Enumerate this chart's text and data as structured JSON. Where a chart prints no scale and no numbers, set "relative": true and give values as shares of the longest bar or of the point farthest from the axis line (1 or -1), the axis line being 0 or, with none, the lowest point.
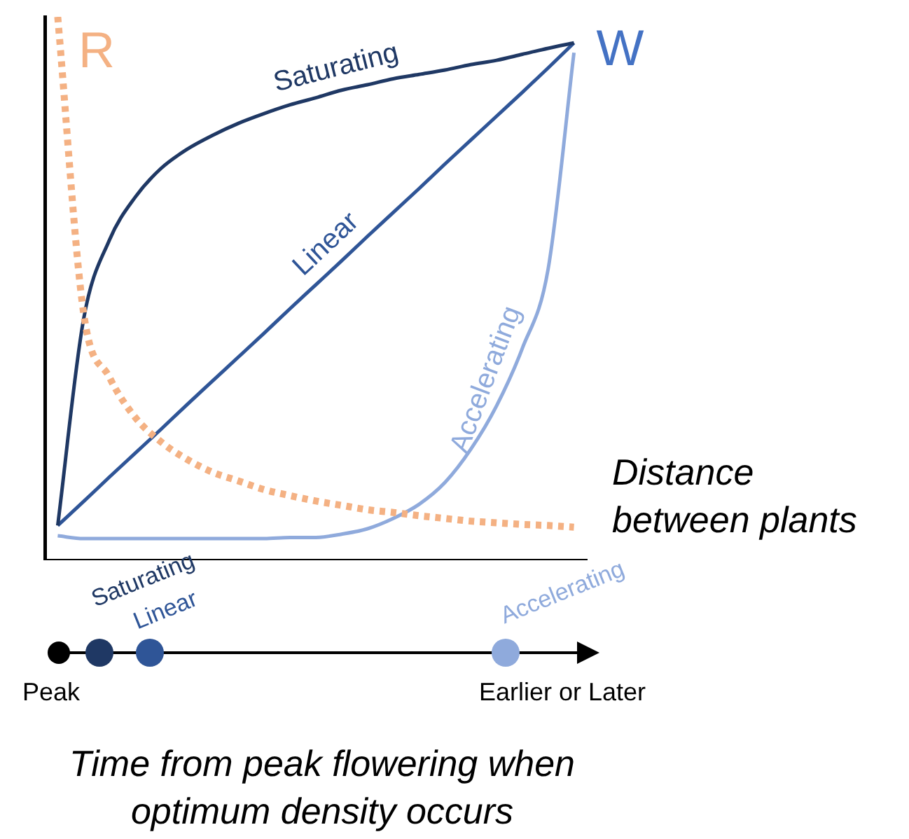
{
  "chart_data": [
    {
      "type": "line",
      "relative": true,
      "xlabel": "Distance between plants",
      "categories": [
        null,
        null,
        null,
        null,
        null,
        null,
        null,
        null,
        null,
        null,
        null,
        null,
        null,
        null,
        null,
        null,
        null,
        null,
        null,
        null,
        null
      ],
      "series": [
        {
          "name": "R",
          "color": "#f4b183",
          "line_style": "dotted",
          "values": [
            1.0,
            0.456,
            0.337,
            0.263,
            0.218,
            0.186,
            0.162,
            0.146,
            0.13,
            0.119,
            0.109,
            0.101,
            0.093,
            0.088,
            0.082,
            0.077,
            0.072,
            0.069,
            0.066,
            0.064,
            0.061
          ]
        },
        {
          "name": "Saturating",
          "color": "#1f3864",
          "line_style": "solid",
          "values": [
            0.064,
            0.443,
            0.589,
            0.668,
            0.721,
            0.756,
            0.782,
            0.804,
            0.822,
            0.838,
            0.851,
            0.865,
            0.875,
            0.886,
            0.894,
            0.902,
            0.912,
            0.92,
            0.931,
            0.942,
            0.952
          ]
        },
        {
          "name": "Linear",
          "color": "#2f5597",
          "line_style": "solid",
          "values": [
            0.064,
            0.108,
            0.153,
            0.197,
            0.241,
            0.286,
            0.33,
            0.374,
            0.418,
            0.463,
            0.507,
            0.551,
            0.596,
            0.64,
            0.684,
            0.729,
            0.773,
            0.817,
            0.861,
            0.906,
            0.952
          ]
        },
        {
          "name": "Accelerating",
          "color": "#8faadc",
          "line_style": "solid",
          "values": [
            0.045,
            0.04,
            0.04,
            0.04,
            0.04,
            0.04,
            0.04,
            0.04,
            0.04,
            0.042,
            0.042,
            0.048,
            0.058,
            0.077,
            0.103,
            0.143,
            0.204,
            0.284,
            0.39,
            0.536,
            0.934
          ]
        }
      ],
      "annotations": [
        "W"
      ],
      "grid": false,
      "legend": false,
      "marker": "none",
      "tick_labels": false
    },
    {
      "type": "other",
      "title": "Time from peak flowering when optimum density occurs",
      "annotations": [
        "Peak",
        "Saturating",
        "Linear",
        "Accelerating",
        "Earlier or Later"
      ]
    }
  ]
}
